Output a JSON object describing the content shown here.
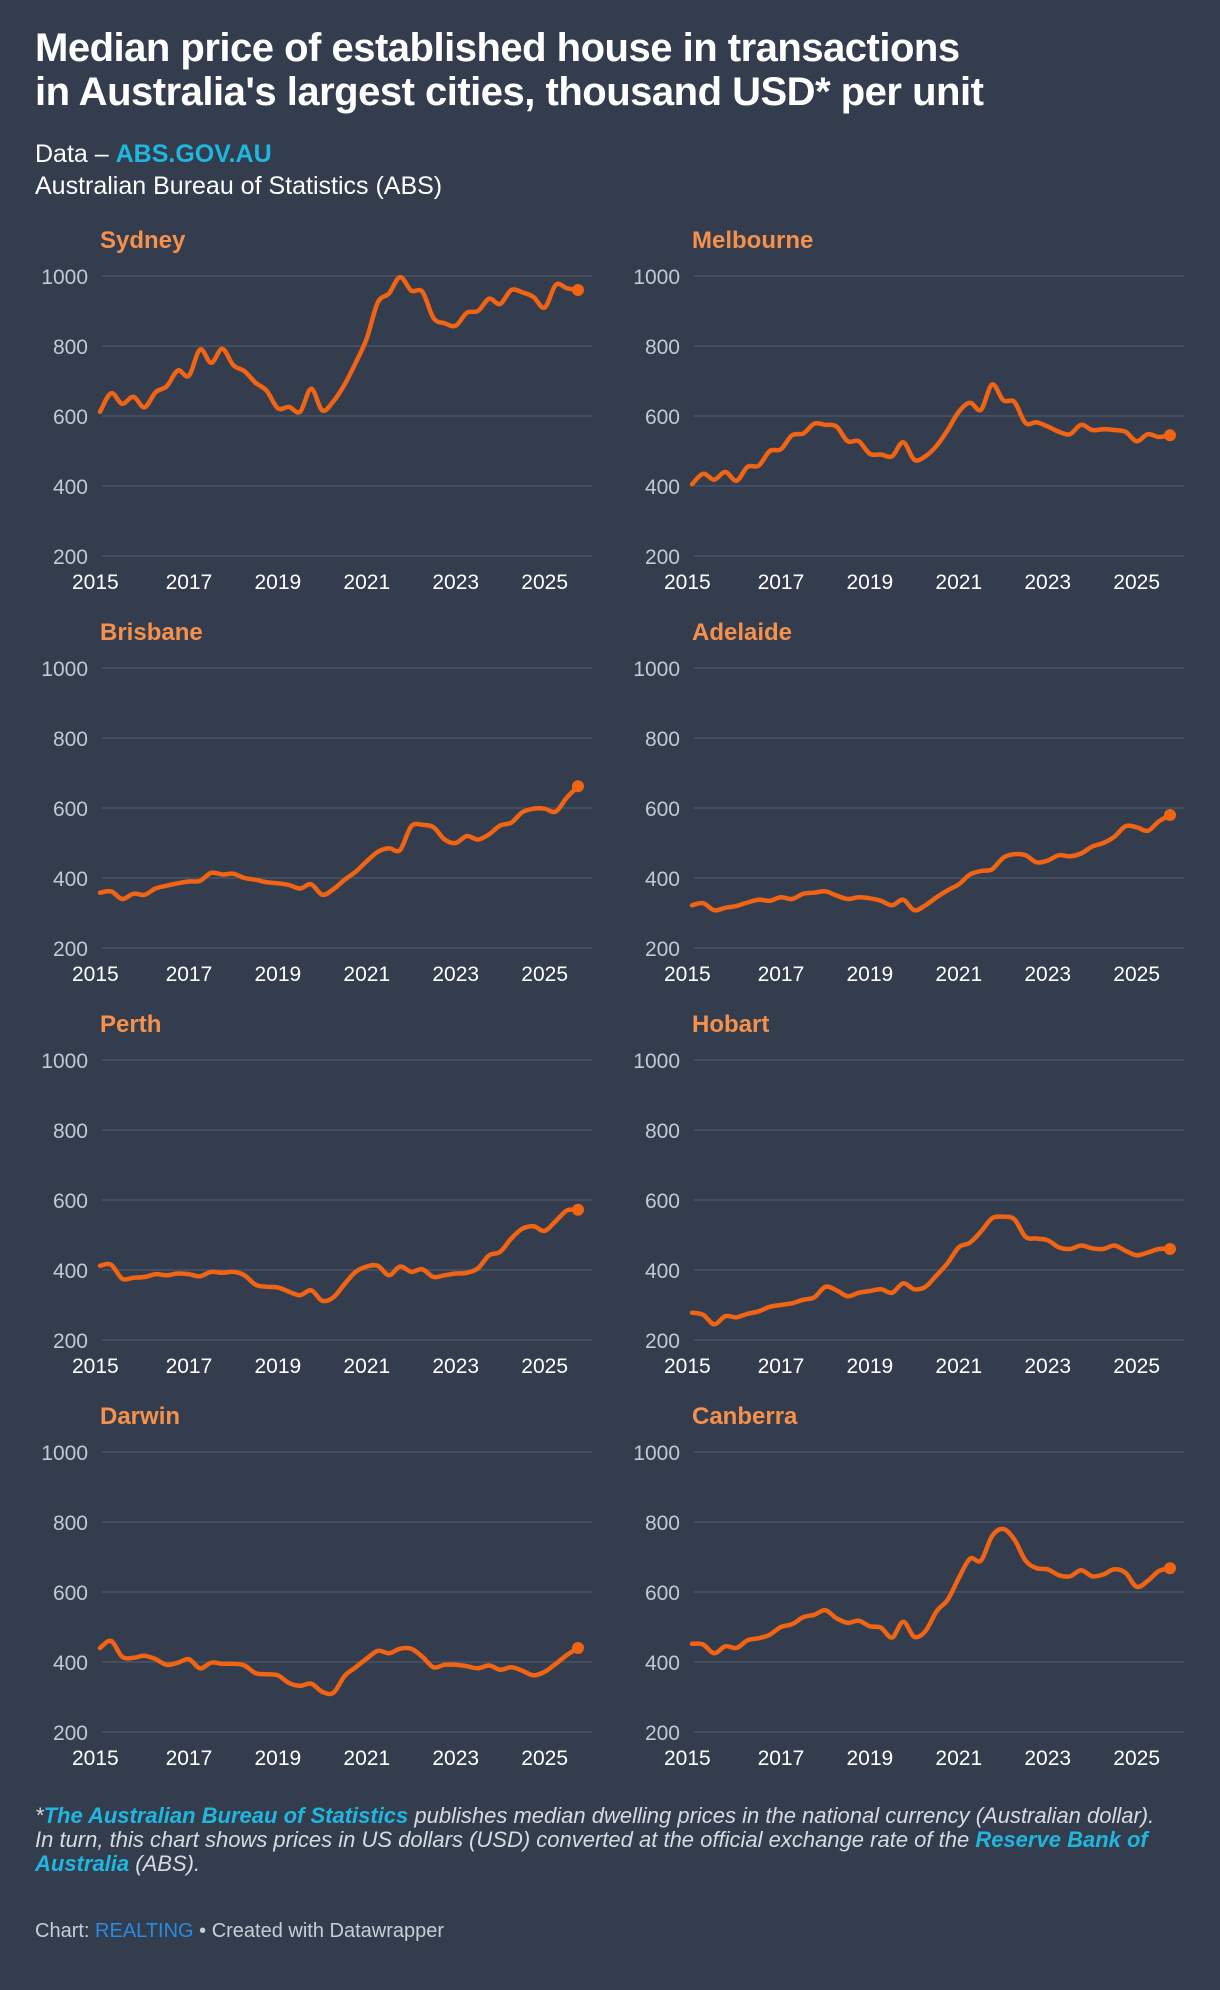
{
  "header": {
    "title_line1": "Median price of established house in transactions",
    "title_line2": "in Australia's largest cities, thousand USD* per unit",
    "data_prefix": "Data – ",
    "data_link": "ABS.GOV.AU",
    "data_source": "Australian Bureau of Statistics (ABS)"
  },
  "footer": {
    "note_star": "*",
    "note_link1": "The Australian Bureau of Statistics",
    "note_text1": " publishes median dwelling prices in the national currency (Australian dollar).",
    "note_text2": "In turn, this chart shows prices in US dollars (USD) converted at the official exchange rate of the ",
    "note_link2": "Reserve Bank of Australia",
    "note_text3": " (ABS).",
    "credit_prefix": "Chart: ",
    "credit_link": "REALTING",
    "credit_suffix": " • Created with Datawrapper"
  },
  "colors": {
    "line": "#f06414",
    "label": "#f5914c",
    "tick": "#c3c9d2",
    "grid": "#4e586a",
    "background": "#343d4d"
  },
  "chart_data": [
    {
      "type": "line",
      "title": "Sydney",
      "ylim": [
        200,
        1000
      ],
      "xlim": [
        2015,
        2025.75
      ],
      "yticks": [
        200,
        400,
        600,
        800,
        1000
      ],
      "xticks": [
        "2015",
        "2017",
        "2019",
        "2021",
        "2023",
        "2025"
      ],
      "x": [
        2015,
        2015.25,
        2015.5,
        2015.75,
        2016,
        2016.25,
        2016.5,
        2016.75,
        2017,
        2017.25,
        2017.5,
        2017.75,
        2018,
        2018.25,
        2018.5,
        2018.75,
        2019,
        2019.25,
        2019.5,
        2019.75,
        2020,
        2020.25,
        2020.5,
        2020.75,
        2021,
        2021.25,
        2021.5,
        2021.75,
        2022,
        2022.25,
        2022.5,
        2022.75,
        2023,
        2023.25,
        2023.5,
        2023.75,
        2024,
        2024.25,
        2024.5,
        2024.75,
        2025,
        2025.25,
        2025.5,
        2025.75
      ],
      "values": [
        612,
        665,
        635,
        655,
        625,
        668,
        685,
        730,
        715,
        790,
        752,
        792,
        745,
        728,
        695,
        672,
        622,
        626,
        612,
        678,
        616,
        642,
        690,
        752,
        822,
        925,
        950,
        997,
        958,
        955,
        880,
        865,
        858,
        895,
        900,
        935,
        920,
        960,
        953,
        940,
        910,
        975,
        965,
        960
      ]
    },
    {
      "type": "line",
      "title": "Melbourne",
      "ylim": [
        200,
        1000
      ],
      "xlim": [
        2015,
        2025.75
      ],
      "yticks": [
        200,
        400,
        600,
        800,
        1000
      ],
      "xticks": [
        "2015",
        "2017",
        "2019",
        "2021",
        "2023",
        "2025"
      ],
      "x": [
        2015,
        2015.25,
        2015.5,
        2015.75,
        2016,
        2016.25,
        2016.5,
        2016.75,
        2017,
        2017.25,
        2017.5,
        2017.75,
        2018,
        2018.25,
        2018.5,
        2018.75,
        2019,
        2019.25,
        2019.5,
        2019.75,
        2020,
        2020.25,
        2020.5,
        2020.75,
        2021,
        2021.25,
        2021.5,
        2021.75,
        2022,
        2022.25,
        2022.5,
        2022.75,
        2023,
        2023.25,
        2023.5,
        2023.75,
        2024,
        2024.25,
        2024.5,
        2024.75,
        2025,
        2025.25,
        2025.5,
        2025.75
      ],
      "values": [
        405,
        435,
        418,
        440,
        415,
        455,
        458,
        500,
        505,
        545,
        550,
        578,
        575,
        570,
        528,
        528,
        492,
        490,
        485,
        525,
        475,
        485,
        515,
        560,
        612,
        638,
        618,
        690,
        645,
        640,
        580,
        582,
        570,
        555,
        548,
        575,
        560,
        562,
        560,
        555,
        528,
        548,
        540,
        545
      ]
    },
    {
      "type": "line",
      "title": "Brisbane",
      "ylim": [
        200,
        1000
      ],
      "xlim": [
        2015,
        2025.75
      ],
      "yticks": [
        200,
        400,
        600,
        800,
        1000
      ],
      "xticks": [
        "2015",
        "2017",
        "2019",
        "2021",
        "2023",
        "2025"
      ],
      "x": [
        2015,
        2015.25,
        2015.5,
        2015.75,
        2016,
        2016.25,
        2016.5,
        2016.75,
        2017,
        2017.25,
        2017.5,
        2017.75,
        2018,
        2018.25,
        2018.5,
        2018.75,
        2019,
        2019.25,
        2019.5,
        2019.75,
        2020,
        2020.25,
        2020.5,
        2020.75,
        2021,
        2021.25,
        2021.5,
        2021.75,
        2022,
        2022.25,
        2022.5,
        2022.75,
        2023,
        2023.25,
        2023.5,
        2023.75,
        2024,
        2024.25,
        2024.5,
        2024.75,
        2025,
        2025.25,
        2025.5,
        2025.75
      ],
      "values": [
        358,
        362,
        340,
        355,
        352,
        370,
        378,
        385,
        390,
        392,
        415,
        410,
        412,
        400,
        395,
        388,
        385,
        380,
        370,
        382,
        352,
        368,
        395,
        418,
        448,
        475,
        485,
        480,
        548,
        552,
        545,
        510,
        500,
        520,
        510,
        525,
        550,
        558,
        588,
        598,
        598,
        590,
        630,
        662
      ]
    },
    {
      "type": "line",
      "title": "Adelaide",
      "ylim": [
        200,
        1000
      ],
      "xlim": [
        2015,
        2025.75
      ],
      "yticks": [
        200,
        400,
        600,
        800,
        1000
      ],
      "xticks": [
        "2015",
        "2017",
        "2019",
        "2021",
        "2023",
        "2025"
      ],
      "x": [
        2015,
        2015.25,
        2015.5,
        2015.75,
        2016,
        2016.25,
        2016.5,
        2016.75,
        2017,
        2017.25,
        2017.5,
        2017.75,
        2018,
        2018.25,
        2018.5,
        2018.75,
        2019,
        2019.25,
        2019.5,
        2019.75,
        2020,
        2020.25,
        2020.5,
        2020.75,
        2021,
        2021.25,
        2021.5,
        2021.75,
        2022,
        2022.25,
        2022.5,
        2022.75,
        2023,
        2023.25,
        2023.5,
        2023.75,
        2024,
        2024.25,
        2024.5,
        2024.75,
        2025,
        2025.25,
        2025.5,
        2025.75
      ],
      "values": [
        322,
        328,
        308,
        315,
        320,
        330,
        338,
        335,
        345,
        340,
        355,
        358,
        362,
        350,
        340,
        345,
        342,
        335,
        322,
        338,
        308,
        322,
        345,
        365,
        382,
        410,
        420,
        425,
        458,
        468,
        465,
        445,
        450,
        465,
        462,
        470,
        490,
        500,
        518,
        548,
        545,
        535,
        562,
        580
      ]
    },
    {
      "type": "line",
      "title": "Perth",
      "ylim": [
        200,
        1000
      ],
      "xlim": [
        2015,
        2025.75
      ],
      "yticks": [
        200,
        400,
        600,
        800,
        1000
      ],
      "xticks": [
        "2015",
        "2017",
        "2019",
        "2021",
        "2023",
        "2025"
      ],
      "x": [
        2015,
        2015.25,
        2015.5,
        2015.75,
        2016,
        2016.25,
        2016.5,
        2016.75,
        2017,
        2017.25,
        2017.5,
        2017.75,
        2018,
        2018.25,
        2018.5,
        2018.75,
        2019,
        2019.25,
        2019.5,
        2019.75,
        2020,
        2020.25,
        2020.5,
        2020.75,
        2021,
        2021.25,
        2021.5,
        2021.75,
        2022,
        2022.25,
        2022.5,
        2022.75,
        2023,
        2023.25,
        2023.5,
        2023.75,
        2024,
        2024.25,
        2024.5,
        2024.75,
        2025,
        2025.25,
        2025.5,
        2025.75
      ],
      "values": [
        412,
        415,
        375,
        378,
        380,
        388,
        385,
        390,
        388,
        382,
        395,
        392,
        395,
        385,
        358,
        352,
        350,
        338,
        328,
        342,
        312,
        322,
        360,
        395,
        410,
        412,
        385,
        410,
        395,
        402,
        380,
        385,
        390,
        392,
        405,
        442,
        452,
        490,
        518,
        525,
        512,
        540,
        570,
        572
      ]
    },
    {
      "type": "line",
      "title": "Hobart",
      "ylim": [
        200,
        1000
      ],
      "xlim": [
        2015,
        2025.75
      ],
      "yticks": [
        200,
        400,
        600,
        800,
        1000
      ],
      "xticks": [
        "2015",
        "2017",
        "2019",
        "2021",
        "2023",
        "2025"
      ],
      "x": [
        2015,
        2015.25,
        2015.5,
        2015.75,
        2016,
        2016.25,
        2016.5,
        2016.75,
        2017,
        2017.25,
        2017.5,
        2017.75,
        2018,
        2018.25,
        2018.5,
        2018.75,
        2019,
        2019.25,
        2019.5,
        2019.75,
        2020,
        2020.25,
        2020.5,
        2020.75,
        2021,
        2021.25,
        2021.5,
        2021.75,
        2022,
        2022.25,
        2022.5,
        2022.75,
        2023,
        2023.25,
        2023.5,
        2023.75,
        2024,
        2024.25,
        2024.5,
        2024.75,
        2025,
        2025.25,
        2025.5,
        2025.75
      ],
      "values": [
        278,
        272,
        245,
        268,
        265,
        275,
        282,
        295,
        300,
        305,
        315,
        322,
        352,
        342,
        325,
        335,
        340,
        345,
        335,
        362,
        345,
        352,
        385,
        420,
        465,
        478,
        510,
        548,
        552,
        545,
        495,
        490,
        485,
        465,
        460,
        470,
        462,
        460,
        470,
        455,
        442,
        450,
        460,
        460
      ]
    },
    {
      "type": "line",
      "title": "Darwin",
      "ylim": [
        200,
        1000
      ],
      "xlim": [
        2015,
        2025.75
      ],
      "yticks": [
        200,
        400,
        600,
        800,
        1000
      ],
      "xticks": [
        "2015",
        "2017",
        "2019",
        "2021",
        "2023",
        "2025"
      ],
      "x": [
        2015,
        2015.25,
        2015.5,
        2015.75,
        2016,
        2016.25,
        2016.5,
        2016.75,
        2017,
        2017.25,
        2017.5,
        2017.75,
        2018,
        2018.25,
        2018.5,
        2018.75,
        2019,
        2019.25,
        2019.5,
        2019.75,
        2020,
        2020.25,
        2020.5,
        2020.75,
        2021,
        2021.25,
        2021.5,
        2021.75,
        2022,
        2022.25,
        2022.5,
        2022.75,
        2023,
        2023.25,
        2023.5,
        2023.75,
        2024,
        2024.25,
        2024.5,
        2024.75,
        2025,
        2025.25,
        2025.5,
        2025.75
      ],
      "values": [
        440,
        460,
        415,
        412,
        418,
        408,
        392,
        398,
        408,
        382,
        398,
        395,
        395,
        390,
        368,
        365,
        362,
        340,
        332,
        338,
        315,
        312,
        360,
        385,
        410,
        432,
        425,
        438,
        438,
        415,
        385,
        392,
        392,
        388,
        382,
        390,
        378,
        385,
        375,
        362,
        372,
        395,
        420,
        440
      ]
    },
    {
      "type": "line",
      "title": "Canberra",
      "ylim": [
        200,
        1000
      ],
      "xlim": [
        2015,
        2025.75
      ],
      "yticks": [
        200,
        400,
        600,
        800,
        1000
      ],
      "xticks": [
        "2015",
        "2017",
        "2019",
        "2021",
        "2023",
        "2025"
      ],
      "x": [
        2015,
        2015.25,
        2015.5,
        2015.75,
        2016,
        2016.25,
        2016.5,
        2016.75,
        2017,
        2017.25,
        2017.5,
        2017.75,
        2018,
        2018.25,
        2018.5,
        2018.75,
        2019,
        2019.25,
        2019.5,
        2019.75,
        2020,
        2020.25,
        2020.5,
        2020.75,
        2021,
        2021.25,
        2021.5,
        2021.75,
        2022,
        2022.25,
        2022.5,
        2022.75,
        2023,
        2023.25,
        2023.5,
        2023.75,
        2024,
        2024.25,
        2024.5,
        2024.75,
        2025,
        2025.25,
        2025.5,
        2025.75
      ],
      "values": [
        452,
        450,
        425,
        445,
        440,
        462,
        468,
        478,
        500,
        508,
        528,
        535,
        548,
        525,
        512,
        518,
        502,
        498,
        470,
        515,
        472,
        488,
        545,
        578,
        640,
        695,
        690,
        760,
        780,
        750,
        690,
        668,
        665,
        648,
        645,
        662,
        645,
        650,
        665,
        655,
        615,
        632,
        660,
        668
      ]
    }
  ]
}
